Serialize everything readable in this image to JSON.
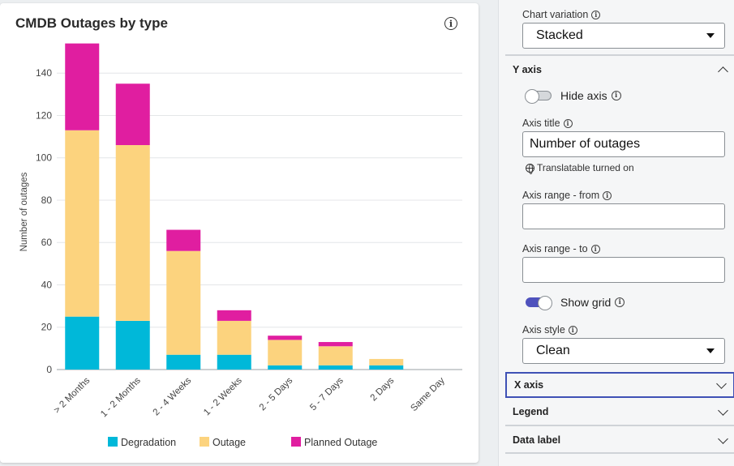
{
  "chart": {
    "title": "CMDB Outages by type",
    "info_icon": "info-icon"
  },
  "chart_data": {
    "type": "bar",
    "stacked": true,
    "title": "CMDB Outages by type",
    "xlabel": "",
    "ylabel": "Number of outages",
    "ylim": [
      0,
      155
    ],
    "yticks": [
      0,
      20,
      40,
      60,
      80,
      100,
      120,
      140
    ],
    "grid": true,
    "legend_position": "bottom",
    "categories": [
      "> 2 Months",
      "1 - 2 Months",
      "2 - 4 Weeks",
      "1 - 2 Weeks",
      "2 - 5 Days",
      "5 - 7 Days",
      "2 Days",
      "Same Day"
    ],
    "series": [
      {
        "name": "Degradation",
        "color": "#00b8d9",
        "values": [
          25,
          23,
          7,
          7,
          2,
          2,
          2,
          0
        ]
      },
      {
        "name": "Outage",
        "color": "#fcd37e",
        "values": [
          88,
          83,
          49,
          16,
          12,
          9,
          3,
          0
        ]
      },
      {
        "name": "Planned Outage",
        "color": "#e01ea0",
        "values": [
          41,
          29,
          10,
          5,
          2,
          2,
          0,
          0
        ]
      }
    ]
  },
  "panel": {
    "chart_variation_label": "Chart variation",
    "chart_variation_value": "Stacked",
    "y_axis": {
      "title": "Y axis",
      "hide_axis_label": "Hide axis",
      "hide_axis_on": false,
      "axis_title_label": "Axis title",
      "axis_title_value": "Number of outages",
      "translatable_text": "Translatable turned on",
      "range_from_label": "Axis range - from",
      "range_from_value": "",
      "range_to_label": "Axis range - to",
      "range_to_value": "",
      "show_grid_label": "Show grid",
      "show_grid_on": true,
      "axis_style_label": "Axis style",
      "axis_style_value": "Clean"
    },
    "sections": {
      "x_axis": "X axis",
      "legend": "Legend",
      "data_label": "Data label"
    },
    "colors": {
      "toggle_on": "#4f52bd",
      "focus_border": "#3f51b5"
    }
  }
}
